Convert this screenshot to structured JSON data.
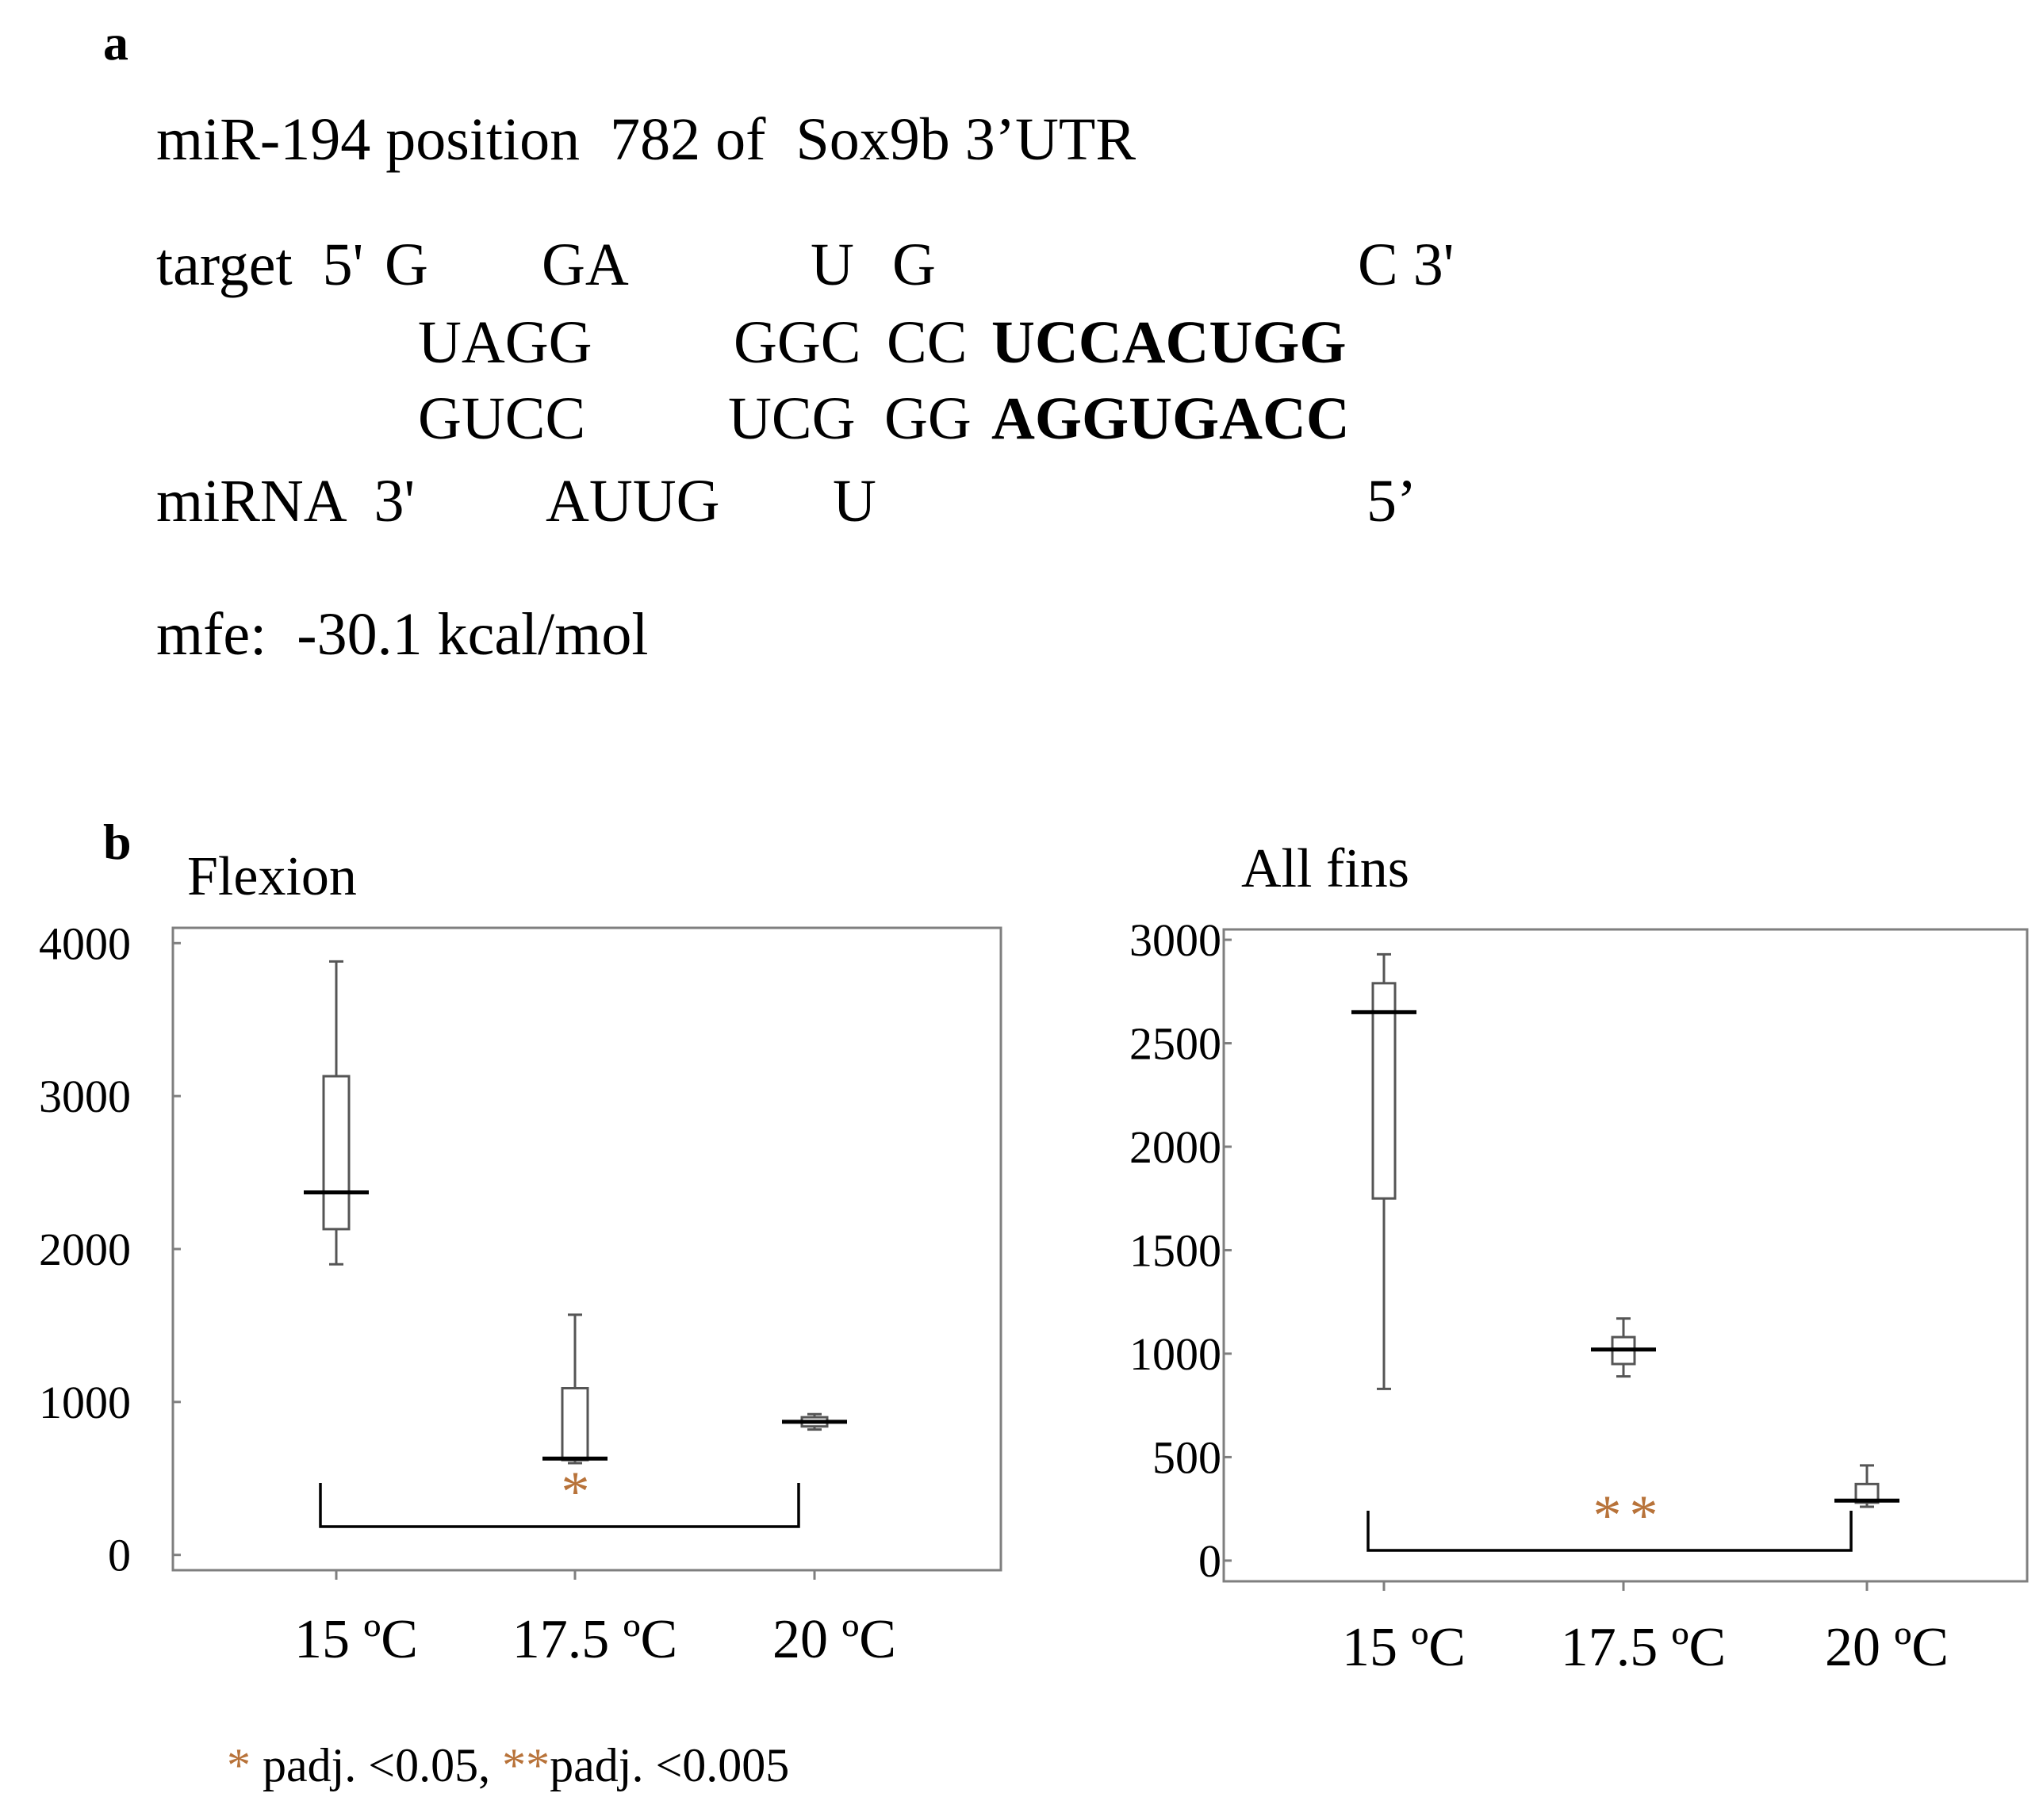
{
  "panel_a": {
    "label": "a",
    "title": "miR-194 position  782 of  Sox9b 3’UTR",
    "target_lead": "target  5'",
    "target_g1": "G",
    "target_ga": "GA",
    "target_u": "U",
    "target_g2": "G",
    "target_c3": "C 3'",
    "upper_p1": "UAGG",
    "upper_p2": "GGC",
    "upper_p3": "CC",
    "upper_seed": "UCCACUGG",
    "lower_p1": "GUCC",
    "lower_p2": "UCG",
    "lower_p3": "GG",
    "lower_seed": "AGGUGACC",
    "mirna_lead": "miRNA  3'",
    "mirna_auug": "AUUG",
    "mirna_u": "U",
    "mirna_5": "5’",
    "mfe": "mfe:  -30.1 kcal/mol"
  },
  "panel_b": {
    "label": "b"
  },
  "legend": {
    "star1": "*",
    "text1": " padj. <0.05, ",
    "star2": "**",
    "text2": "padj. <0.005"
  },
  "chart_data": [
    {
      "type": "box",
      "title": "Flexion",
      "categories": [
        "15 ºC",
        "17.5 ºC",
        "20 ºC"
      ],
      "ylim": [
        -100,
        4100
      ],
      "yticks": [
        0,
        1000,
        2000,
        3000,
        4000
      ],
      "ytick_labels": [
        "0",
        "1000",
        "2000",
        "3000",
        "4000"
      ],
      "boxes": [
        {
          "whisker_low": 1900,
          "q1": 2130,
          "median": 2370,
          "q3": 3130,
          "whisker_high": 3880
        },
        {
          "whisker_low": 600,
          "q1": 620,
          "median": 630,
          "q3": 1090,
          "whisker_high": 1570
        },
        {
          "whisker_low": 820,
          "q1": 840,
          "median": 870,
          "q3": 900,
          "whisker_high": 920
        }
      ],
      "significance": {
        "from": 0,
        "to": 2,
        "marker": "*"
      }
    },
    {
      "type": "box",
      "title": "All fins",
      "categories": [
        "15 ºC",
        "17.5 ºC",
        "20 ºC"
      ],
      "ylim": [
        -100,
        3050
      ],
      "yticks": [
        0,
        500,
        1000,
        1500,
        2000,
        2500,
        3000
      ],
      "ytick_labels": [
        "0",
        "500",
        "1000",
        "1500",
        "2000",
        "2500",
        "3000"
      ],
      "boxes": [
        {
          "whisker_low": 830,
          "q1": 1750,
          "median": 2650,
          "q3": 2790,
          "whisker_high": 2930
        },
        {
          "whisker_low": 890,
          "q1": 950,
          "median": 1020,
          "q3": 1080,
          "whisker_high": 1170
        },
        {
          "whisker_low": 260,
          "q1": 280,
          "median": 290,
          "q3": 370,
          "whisker_high": 460
        }
      ],
      "significance": {
        "from": 0,
        "to": 2,
        "marker": "**"
      }
    }
  ]
}
